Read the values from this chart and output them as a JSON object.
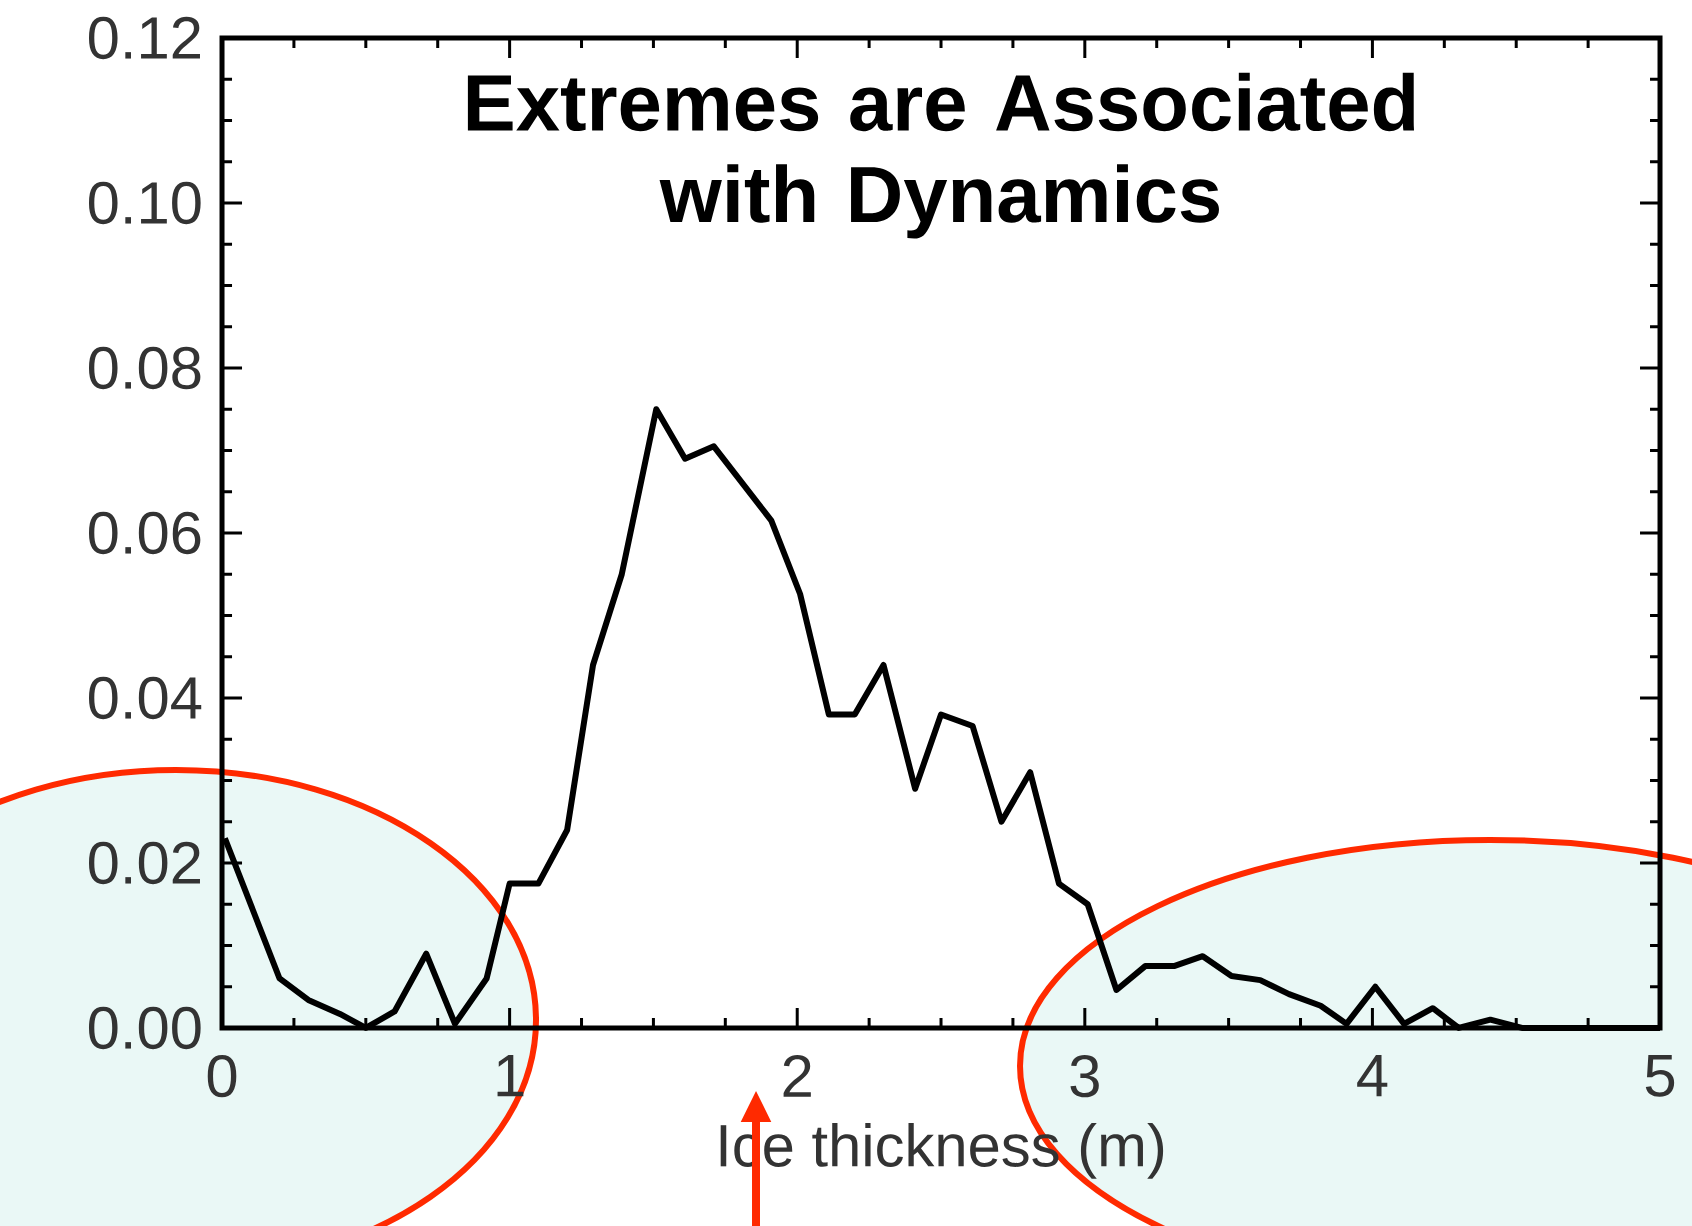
{
  "chart_data": {
    "type": "line",
    "title": "Extremes are Associated with Dynamics",
    "xlabel": "Ice thickness (m)",
    "x": [
      0.01,
      0.2,
      0.3,
      0.41,
      0.5,
      0.6,
      0.71,
      0.81,
      0.92,
      1.0,
      1.1,
      1.2,
      1.29,
      1.39,
      1.51,
      1.61,
      1.71,
      1.81,
      1.91,
      2.01,
      2.11,
      2.2,
      2.3,
      2.41,
      2.5,
      2.61,
      2.71,
      2.81,
      2.91,
      3.01,
      3.11,
      3.21,
      3.31,
      3.41,
      3.51,
      3.61,
      3.71,
      3.82,
      3.91,
      4.01,
      4.11,
      4.21,
      4.3,
      4.41,
      4.52,
      4.75,
      5.0
    ],
    "series": [
      {
        "color": "#000000",
        "values": [
          0.023,
          0.006,
          0.0034,
          0.0017,
          0.0,
          0.002,
          0.009,
          0.0005,
          0.006,
          0.0175,
          0.0175,
          0.024,
          0.044,
          0.055,
          0.075,
          0.069,
          0.0705,
          0.066,
          0.0615,
          0.0526,
          0.038,
          0.038,
          0.044,
          0.029,
          0.038,
          0.0366,
          0.025,
          0.031,
          0.0175,
          0.015,
          0.0046,
          0.0075,
          0.0075,
          0.0087,
          0.0063,
          0.0058,
          0.0041,
          0.0027,
          0.0005,
          0.005,
          0.0005,
          0.0024,
          0.0,
          0.001,
          0.0,
          0.0,
          0.0
        ]
      }
    ],
    "xlim": [
      0,
      5
    ],
    "ylim": [
      0,
      0.12
    ],
    "xticks": [
      0,
      1,
      2,
      3,
      4,
      5
    ],
    "yticks": [
      {
        "value": 0,
        "label": "0.00"
      },
      {
        "value": 0.02,
        "label": "0.02"
      },
      {
        "value": 0.04,
        "label": "0.04"
      },
      {
        "value": 0.06,
        "label": "0.06"
      },
      {
        "value": 0.08,
        "label": "0.08"
      },
      {
        "value": 0.1,
        "label": "0.10"
      },
      {
        "value": 0.12,
        "label": "0.12"
      }
    ],
    "grid": false,
    "marker": "none",
    "line_style": "solid"
  }
}
